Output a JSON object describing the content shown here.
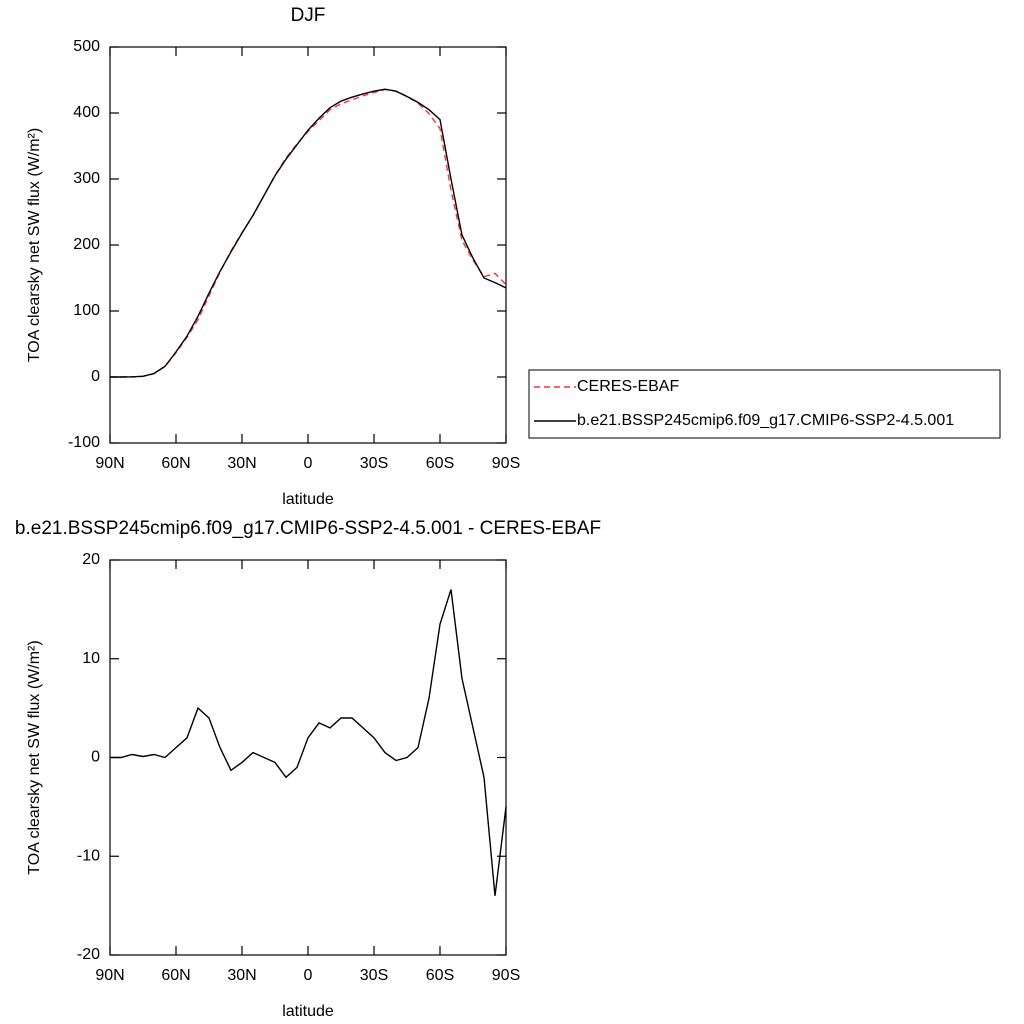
{
  "chart_data": [
    {
      "type": "line",
      "title": "DJF",
      "xlabel": "latitude",
      "ylabel": "TOA clearsky net SW flux (W/m²)",
      "x": [
        90,
        85,
        80,
        75,
        70,
        65,
        60,
        55,
        50,
        45,
        40,
        35,
        30,
        25,
        20,
        15,
        10,
        5,
        0,
        -5,
        -10,
        -15,
        -20,
        -25,
        -30,
        -35,
        -40,
        -45,
        -50,
        -55,
        -60,
        -65,
        -70,
        -75,
        -80,
        -85,
        -90
      ],
      "series": [
        {
          "name": "CERES-EBAF",
          "color": "#ff3030",
          "dash": true,
          "values": [
            0,
            0,
            0,
            1,
            5,
            16,
            37,
            60,
            87,
            123,
            159,
            191,
            218.5,
            244.5,
            275,
            305.5,
            332,
            353,
            372,
            388.5,
            405,
            414,
            420,
            426,
            431,
            435.5,
            433.3,
            425,
            415,
            399,
            376.5,
            283,
            207,
            177,
            152,
            157,
            140
          ]
        },
        {
          "name": "b.e21.BSSP245cmip6.f09_g17.CMIP6-SSP2-4.5.001",
          "color": "#000000",
          "dash": false,
          "values": [
            0,
            0,
            0.3,
            1.1,
            5.3,
            16,
            38,
            62,
            92,
            127,
            160,
            189.7,
            218,
            245,
            275,
            305,
            330,
            352,
            374,
            392,
            408,
            418,
            424,
            429,
            433,
            436,
            433,
            425,
            416,
            405,
            390,
            300,
            215,
            180,
            150,
            143,
            135
          ]
        }
      ],
      "xlim": [
        90,
        -90
      ],
      "xticks": [
        {
          "value": 90,
          "label": "90N"
        },
        {
          "value": 60,
          "label": "60N"
        },
        {
          "value": 30,
          "label": "30N"
        },
        0,
        {
          "value": -30,
          "label": "30S"
        },
        {
          "value": -60,
          "label": "60S"
        },
        {
          "value": -90,
          "label": "90S"
        }
      ],
      "ylim": [
        -100,
        500
      ],
      "yticks": [
        -100,
        0,
        100,
        200,
        300,
        400,
        500
      ],
      "legend": "right"
    },
    {
      "type": "line",
      "title": "b.e21.BSSP245cmip6.f09_g17.CMIP6-SSP2-4.5.001 - CERES-EBAF",
      "xlabel": "latitude",
      "ylabel": "TOA clearsky net SW flux (W/m²)",
      "x": [
        90,
        85,
        80,
        75,
        70,
        65,
        60,
        55,
        50,
        45,
        40,
        35,
        30,
        25,
        20,
        15,
        10,
        5,
        0,
        -5,
        -10,
        -15,
        -20,
        -25,
        -30,
        -35,
        -40,
        -45,
        -50,
        -55,
        -60,
        -65,
        -70,
        -75,
        -80,
        -85,
        -90
      ],
      "color": "#000000",
      "values": [
        0,
        0,
        0.3,
        0.1,
        0.3,
        0,
        1,
        2,
        5,
        4,
        1,
        -1.3,
        -0.5,
        0.5,
        0,
        -0.5,
        -2,
        -1,
        2,
        3.5,
        3,
        4,
        4,
        3,
        2,
        0.5,
        -0.3,
        0,
        1,
        6,
        13.5,
        17,
        8,
        3,
        -2,
        -14,
        -5
      ],
      "xlim": [
        90,
        -90
      ],
      "xticks": [
        {
          "value": 90,
          "label": "90N"
        },
        {
          "value": 60,
          "label": "60N"
        },
        {
          "value": 30,
          "label": "30N"
        },
        0,
        {
          "value": -30,
          "label": "30S"
        },
        {
          "value": -60,
          "label": "60S"
        },
        {
          "value": -90,
          "label": "90S"
        }
      ],
      "ylim": [
        -20,
        20
      ],
      "yticks": [
        -20,
        -10,
        0,
        10,
        20
      ]
    }
  ]
}
